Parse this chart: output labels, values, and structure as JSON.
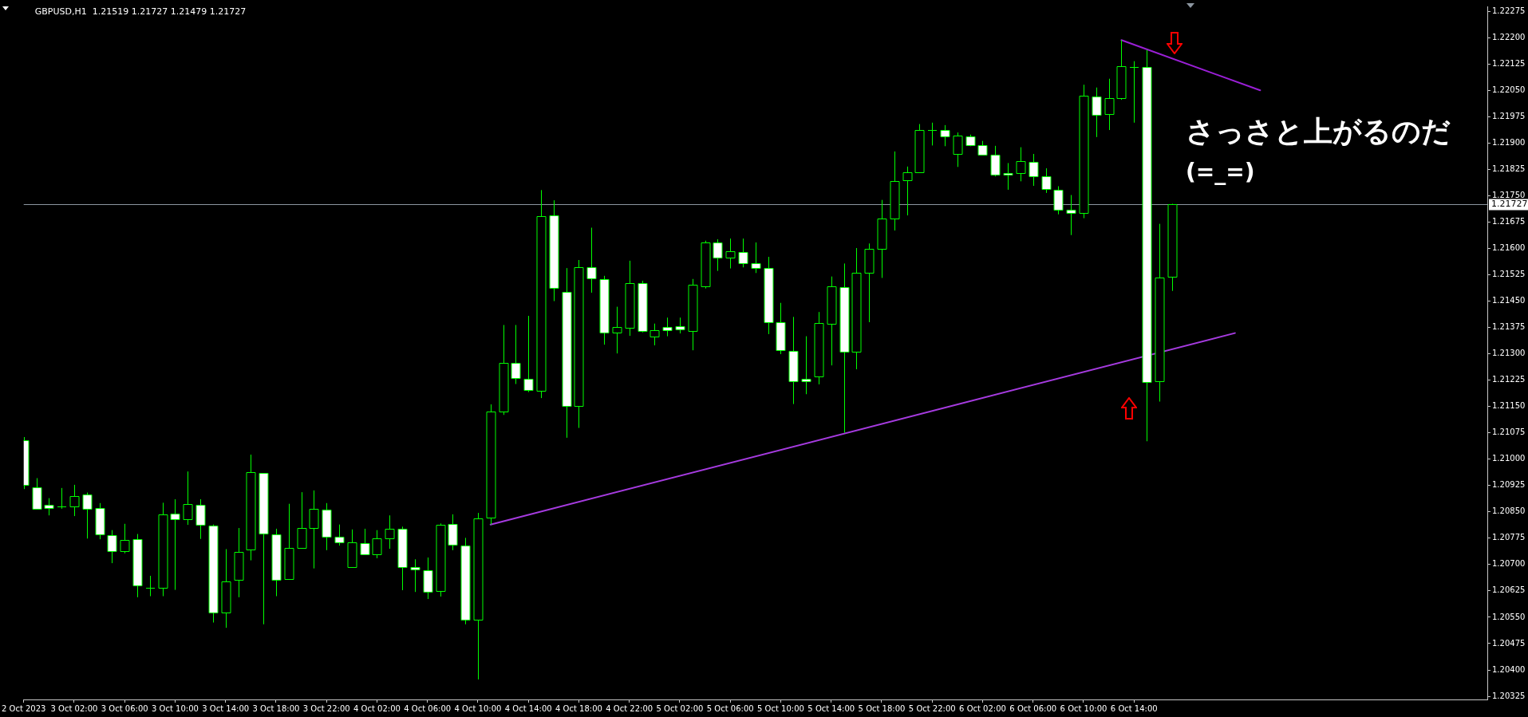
{
  "chart_data": {
    "type": "candlestick",
    "title": "GBPUSD,H1  1.21519 1.21727 1.21479 1.21727",
    "categories": [
      "2 Oct 2023",
      null,
      null,
      null,
      "3 Oct 02:00",
      null,
      null,
      null,
      "3 Oct 06:00",
      null,
      null,
      null,
      "3 Oct 10:00",
      null,
      null,
      null,
      "3 Oct 14:00",
      null,
      null,
      null,
      "3 Oct 18:00",
      null,
      null,
      null,
      "3 Oct 22:00",
      null,
      null,
      null,
      "4 Oct 02:00",
      null,
      null,
      null,
      "4 Oct 06:00",
      null,
      null,
      null,
      "4 Oct 10:00",
      null,
      null,
      null,
      "4 Oct 14:00",
      null,
      null,
      null,
      "4 Oct 18:00",
      null,
      null,
      null,
      "4 Oct 22:00",
      null,
      null,
      null,
      "5 Oct 02:00",
      null,
      null,
      null,
      "5 Oct 06:00",
      null,
      null,
      null,
      "5 Oct 10:00",
      null,
      null,
      null,
      "5 Oct 14:00",
      null,
      null,
      null,
      "5 Oct 18:00",
      null,
      null,
      null,
      "5 Oct 22:00",
      null,
      null,
      null,
      "6 Oct 02:00",
      null,
      null,
      null,
      "6 Oct 06:00",
      null,
      null,
      null,
      "6 Oct 10:00",
      null,
      null,
      null,
      "6 Oct 14:00",
      null,
      null,
      null,
      null,
      null,
      null,
      null,
      null,
      null,
      null,
      null,
      null,
      null,
      null,
      null,
      null,
      null,
      null,
      null,
      null,
      null,
      null,
      null,
      null,
      null,
      null,
      null,
      null
    ],
    "ohlc": [
      [
        1.21053,
        1.21063,
        1.20915,
        1.20926
      ],
      [
        1.20919,
        1.20946,
        1.20859,
        1.20859
      ],
      [
        1.20871,
        1.20889,
        1.2084,
        1.20861
      ],
      [
        1.20866,
        1.20918,
        1.20859,
        1.20866
      ],
      [
        1.20866,
        1.20927,
        1.20838,
        1.20895
      ],
      [
        1.209,
        1.20905,
        1.20774,
        1.20859
      ],
      [
        1.20861,
        1.20875,
        1.20772,
        1.20785
      ],
      [
        1.20784,
        1.20798,
        1.20704,
        1.20739
      ],
      [
        1.20739,
        1.20816,
        1.20732,
        1.2077
      ],
      [
        1.20773,
        1.20787,
        1.20607,
        1.2064
      ],
      [
        1.20634,
        1.20668,
        1.2061,
        1.20634
      ],
      [
        1.20633,
        1.20876,
        1.2061,
        1.20843
      ],
      [
        1.20845,
        1.20886,
        1.20628,
        1.2083
      ],
      [
        1.2083,
        1.20965,
        1.20813,
        1.20872
      ],
      [
        1.2087,
        1.20886,
        1.20773,
        1.20814
      ],
      [
        1.20811,
        1.20814,
        1.20535,
        1.20563
      ],
      [
        1.20563,
        1.20744,
        1.2052,
        1.20653
      ],
      [
        1.20656,
        1.20804,
        1.20607,
        1.20737
      ],
      [
        1.20742,
        1.21013,
        1.20712,
        1.20962
      ],
      [
        1.2096,
        1.2096,
        1.2053,
        1.20789
      ],
      [
        1.20786,
        1.20802,
        1.2061,
        1.20656
      ],
      [
        1.20658,
        1.20873,
        1.20658,
        1.20748
      ],
      [
        1.20748,
        1.20906,
        1.20745,
        1.20804
      ],
      [
        1.20804,
        1.20911,
        1.20689,
        1.20859
      ],
      [
        1.20856,
        1.20875,
        1.20741,
        1.2078
      ],
      [
        1.20779,
        1.20814,
        1.20754,
        1.20764
      ],
      [
        1.20693,
        1.208,
        1.20693,
        1.20764
      ],
      [
        1.20761,
        1.20802,
        1.2073,
        1.2073
      ],
      [
        1.2073,
        1.20798,
        1.20718,
        1.20775
      ],
      [
        1.20775,
        1.2084,
        1.20745,
        1.20802
      ],
      [
        1.20801,
        1.20808,
        1.20627,
        1.20693
      ],
      [
        1.20692,
        1.20715,
        1.20622,
        1.20686
      ],
      [
        1.20683,
        1.2072,
        1.20602,
        1.20623
      ],
      [
        1.20625,
        1.20817,
        1.20609,
        1.20814
      ],
      [
        1.20816,
        1.20843,
        1.20741,
        1.20756
      ],
      [
        1.20755,
        1.20776,
        1.2053,
        1.20544
      ],
      [
        1.20544,
        1.20847,
        1.20373,
        1.20832
      ],
      [
        1.20833,
        1.21156,
        1.20814,
        1.21135
      ],
      [
        1.21135,
        1.21382,
        1.21126,
        1.21275
      ],
      [
        1.21275,
        1.21382,
        1.21214,
        1.2123
      ],
      [
        1.21229,
        1.21408,
        1.21191,
        1.21196
      ],
      [
        1.21194,
        1.21766,
        1.21174,
        1.21693
      ],
      [
        1.21695,
        1.21737,
        1.2145,
        1.21488
      ],
      [
        1.21476,
        1.21544,
        1.21061,
        1.21151
      ],
      [
        1.21151,
        1.21567,
        1.21089,
        1.21546
      ],
      [
        1.21546,
        1.21659,
        1.21474,
        1.21514
      ],
      [
        1.21512,
        1.21522,
        1.21326,
        1.21361
      ],
      [
        1.21361,
        1.21434,
        1.21301,
        1.21377
      ],
      [
        1.21374,
        1.21565,
        1.21351,
        1.21501
      ],
      [
        1.21501,
        1.21508,
        1.21361,
        1.21365
      ],
      [
        1.21348,
        1.21386,
        1.21324,
        1.21367
      ],
      [
        1.21377,
        1.21403,
        1.2135,
        1.21368
      ],
      [
        1.21379,
        1.21403,
        1.21358,
        1.21369
      ],
      [
        1.21365,
        1.21513,
        1.2131,
        1.21496
      ],
      [
        1.21492,
        1.21622,
        1.21486,
        1.21616
      ],
      [
        1.21616,
        1.21626,
        1.21536,
        1.21573
      ],
      [
        1.21573,
        1.21628,
        1.21543,
        1.21591
      ],
      [
        1.21589,
        1.21628,
        1.21546,
        1.21557
      ],
      [
        1.21557,
        1.21617,
        1.2153,
        1.21544
      ],
      [
        1.21544,
        1.21576,
        1.21356,
        1.2139
      ],
      [
        1.2139,
        1.21445,
        1.21299,
        1.21311
      ],
      [
        1.21309,
        1.21405,
        1.21157,
        1.21221
      ],
      [
        1.21229,
        1.2135,
        1.21185,
        1.21221
      ],
      [
        1.21235,
        1.21419,
        1.21213,
        1.21388
      ],
      [
        1.21386,
        1.2152,
        1.21267,
        1.21491
      ],
      [
        1.2149,
        1.21557,
        1.21075,
        1.21307
      ],
      [
        1.21307,
        1.21601,
        1.21256,
        1.2153
      ],
      [
        1.2153,
        1.21614,
        1.2139,
        1.21598
      ],
      [
        1.21598,
        1.21738,
        1.21516,
        1.21686
      ],
      [
        1.21686,
        1.21876,
        1.21651,
        1.21792
      ],
      [
        1.21795,
        1.21833,
        1.21694,
        1.21816
      ],
      [
        1.21817,
        1.21954,
        1.21817,
        1.21937
      ],
      [
        1.21936,
        1.21958,
        1.21893,
        1.21936
      ],
      [
        1.21937,
        1.21951,
        1.21891,
        1.21919
      ],
      [
        1.21869,
        1.2193,
        1.21832,
        1.21921
      ],
      [
        1.21918,
        1.21924,
        1.21891,
        1.21894
      ],
      [
        1.21893,
        1.21906,
        1.21867,
        1.21867
      ],
      [
        1.21866,
        1.21892,
        1.21805,
        1.21809
      ],
      [
        1.21815,
        1.21843,
        1.21767,
        1.21809
      ],
      [
        1.21815,
        1.21888,
        1.21791,
        1.21848
      ],
      [
        1.21846,
        1.21869,
        1.21778,
        1.21806
      ],
      [
        1.21805,
        1.21828,
        1.21758,
        1.21768
      ],
      [
        1.21767,
        1.21777,
        1.21697,
        1.21711
      ],
      [
        1.21711,
        1.21752,
        1.21638,
        1.21702
      ],
      [
        1.21702,
        1.22066,
        1.21686,
        1.22034
      ],
      [
        1.22033,
        1.22058,
        1.21917,
        1.21981
      ],
      [
        1.21983,
        1.22083,
        1.21937,
        1.22028
      ],
      [
        1.22028,
        1.22193,
        1.22023,
        1.22119
      ],
      [
        1.22117,
        1.22133,
        1.21958,
        1.22117
      ],
      [
        1.22116,
        1.22165,
        1.21051,
        1.21219
      ],
      [
        1.21221,
        1.2167,
        1.21164,
        1.21517
      ],
      [
        1.21519,
        1.21727,
        1.21479,
        1.21727
      ],
      null,
      null,
      null,
      null,
      null,
      null,
      null,
      null,
      null,
      null,
      null,
      null,
      null,
      null,
      null,
      null,
      null,
      null,
      null,
      null,
      null,
      null,
      null,
      null,
      null
    ],
    "series": [
      {
        "type": "line",
        "color": "#a63be0",
        "values": [
          null,
          null,
          null,
          null,
          null,
          null,
          null,
          null,
          null,
          null,
          null,
          null,
          null,
          null,
          null,
          null,
          null,
          null,
          null,
          null,
          null,
          null,
          null,
          null,
          null,
          null,
          null,
          null,
          null,
          null,
          null,
          null,
          null,
          null,
          null,
          null,
          null,
          1.20814,
          null,
          null,
          null,
          null,
          null,
          null,
          null,
          null,
          null,
          null,
          null,
          null,
          null,
          null,
          null,
          null,
          null,
          null,
          null,
          null,
          null,
          null,
          null,
          null,
          null,
          null,
          null,
          null,
          null,
          null,
          null,
          null,
          null,
          null,
          null,
          null,
          null,
          null,
          null,
          null,
          null,
          null,
          null,
          null,
          null,
          null,
          null,
          null,
          null,
          null,
          null,
          null,
          null,
          null,
          null,
          null,
          null,
          null,
          1.21359,
          null,
          null,
          null,
          null,
          null,
          null,
          null,
          null,
          null,
          null,
          null,
          null,
          null,
          null,
          null,
          null,
          null,
          null,
          null,
          null
        ]
      },
      {
        "type": "line",
        "color": "#9a1fd6",
        "values": [
          null,
          null,
          null,
          null,
          null,
          null,
          null,
          null,
          null,
          null,
          null,
          null,
          null,
          null,
          null,
          null,
          null,
          null,
          null,
          null,
          null,
          null,
          null,
          null,
          null,
          null,
          null,
          null,
          null,
          null,
          null,
          null,
          null,
          null,
          null,
          null,
          null,
          null,
          null,
          null,
          null,
          null,
          null,
          null,
          null,
          null,
          null,
          null,
          null,
          null,
          null,
          null,
          null,
          null,
          null,
          null,
          null,
          null,
          null,
          null,
          null,
          null,
          null,
          null,
          null,
          null,
          null,
          null,
          null,
          null,
          null,
          null,
          null,
          null,
          null,
          null,
          null,
          null,
          null,
          null,
          null,
          null,
          null,
          null,
          null,
          null,
          null,
          1.22193,
          null,
          null,
          null,
          null,
          null,
          null,
          null,
          null,
          null,
          null,
          1.2205,
          null,
          null,
          null,
          null,
          null,
          null,
          null,
          null,
          null,
          null,
          null,
          null,
          null,
          null,
          null,
          null,
          null,
          null
        ]
      }
    ],
    "ref_lines": [
      {
        "axis": "y",
        "value": 1.21727,
        "label": "1.21727",
        "color": "#8c96a0"
      }
    ],
    "annotations": [
      "さっさと上がるのだ",
      "(=_=)"
    ],
    "ylim": [
      1.20316,
      1.22289
    ],
    "yticks": [
      1.20325,
      {
        "value": 1.204,
        "label": "1.20400"
      },
      1.20475,
      {
        "value": 1.2055,
        "label": "1.20550"
      },
      1.20625,
      {
        "value": 1.207,
        "label": "1.20700"
      },
      1.20775,
      {
        "value": 1.2085,
        "label": "1.20850"
      },
      1.20925,
      {
        "value": 1.21,
        "label": "1.21000"
      },
      1.21075,
      {
        "value": 1.2115,
        "label": "1.21150"
      },
      1.21225,
      {
        "value": 1.213,
        "label": "1.21300"
      },
      1.21375,
      {
        "value": 1.2145,
        "label": "1.21450"
      },
      1.21525,
      {
        "value": 1.216,
        "label": "1.21600"
      },
      1.21675,
      {
        "value": 1.2175,
        "label": "1.21750"
      },
      1.21825,
      {
        "value": 1.219,
        "label": "1.21900"
      },
      1.21975,
      {
        "value": 1.2205,
        "label": "1.22050"
      },
      1.22125,
      {
        "value": 1.222,
        "label": "1.22200"
      },
      1.22275
    ]
  }
}
